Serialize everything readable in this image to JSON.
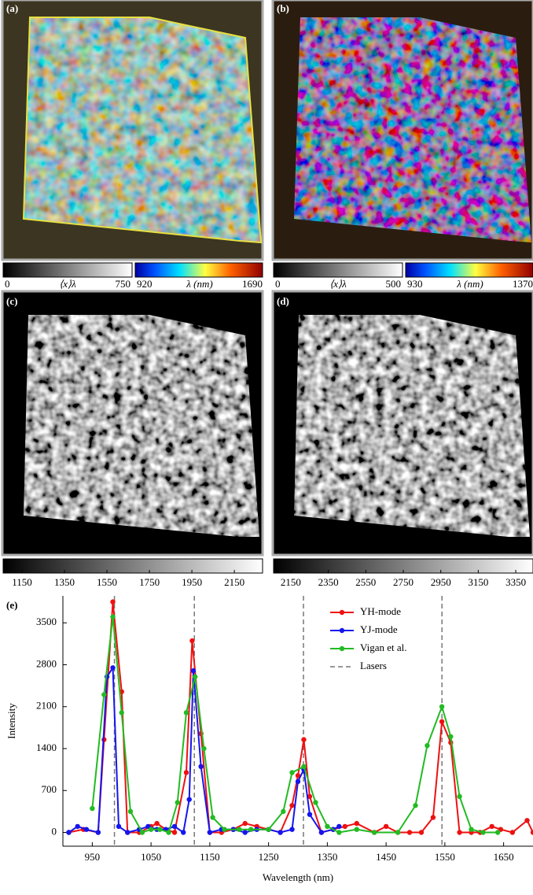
{
  "panels": [
    {
      "label": "(a)",
      "colorbars": [
        {
          "left": "0",
          "center": "⟨x⟩λ",
          "right": "750"
        },
        {
          "left": "920",
          "center": "λ (nm)",
          "right": "1690"
        }
      ]
    },
    {
      "label": "(b)",
      "colorbars": [
        {
          "left": "0",
          "center": "⟨x⟩λ",
          "right": "500"
        },
        {
          "left": "930",
          "center": "λ (nm)",
          "right": "1370"
        }
      ]
    },
    {
      "label": "(c)",
      "colorbar": {
        "clim": [
          1061,
          2283
        ],
        "ticks": [
          1150,
          1350,
          1550,
          1750,
          1950,
          2150
        ]
      }
    },
    {
      "label": "(d)",
      "colorbar": {
        "clim": [
          2058,
          3442
        ],
        "ticks": [
          2150,
          2350,
          2550,
          2750,
          2950,
          3150,
          3350
        ]
      }
    }
  ],
  "chart_data": {
    "type": "line",
    "panel_label": "(e)",
    "x_label": "Wavelength (nm)",
    "y_label": "Intensity",
    "xlim": [
      900,
      1700
    ],
    "ylim": [
      -230,
      3950
    ],
    "xticks": [
      950,
      1050,
      1150,
      1250,
      1350,
      1450,
      1550,
      1650
    ],
    "yticks": [
      0,
      700,
      1400,
      2100,
      2800,
      3500
    ],
    "legend_position": "upper right",
    "series": [
      {
        "name": "YH-mode",
        "color": "#ee1111",
        "x": [
          910,
          935,
          960,
          970,
          985,
          1000,
          1010,
          1030,
          1050,
          1060,
          1075,
          1090,
          1110,
          1120,
          1135,
          1150,
          1170,
          1190,
          1210,
          1230,
          1250,
          1270,
          1290,
          1300,
          1310,
          1320,
          1340,
          1360,
          1380,
          1400,
          1430,
          1450,
          1470,
          1490,
          1510,
          1530,
          1545,
          1560,
          1575,
          1595,
          1610,
          1630,
          1645,
          1665,
          1690,
          1700
        ],
        "values": [
          0,
          50,
          0,
          1550,
          3850,
          2350,
          0,
          0,
          100,
          150,
          50,
          0,
          1000,
          3200,
          1650,
          0,
          0,
          50,
          150,
          100,
          50,
          0,
          450,
          950,
          1550,
          600,
          0,
          50,
          100,
          150,
          0,
          100,
          0,
          0,
          0,
          250,
          1850,
          1500,
          0,
          0,
          0,
          100,
          50,
          0,
          200,
          0
        ]
      },
      {
        "name": "YJ-mode",
        "color": "#1515ee",
        "x": [
          910,
          925,
          940,
          960,
          975,
          985,
          995,
          1010,
          1030,
          1045,
          1060,
          1075,
          1090,
          1105,
          1115,
          1122,
          1135,
          1150,
          1170,
          1190,
          1210,
          1230,
          1250,
          1270,
          1290,
          1300,
          1310,
          1320,
          1340,
          1360,
          1370
        ],
        "values": [
          0,
          100,
          50,
          0,
          2600,
          2750,
          100,
          0,
          50,
          100,
          50,
          50,
          100,
          0,
          550,
          2700,
          1100,
          0,
          50,
          50,
          0,
          50,
          50,
          0,
          50,
          850,
          1050,
          300,
          0,
          50,
          100
        ]
      },
      {
        "name": "Vigan et al.",
        "color": "#22bb22",
        "x": [
          950,
          970,
          985,
          1000,
          1015,
          1035,
          1050,
          1065,
          1080,
          1095,
          1110,
          1125,
          1140,
          1155,
          1175,
          1200,
          1220,
          1250,
          1275,
          1290,
          1310,
          1330,
          1350,
          1370,
          1400,
          1430,
          1470,
          1500,
          1520,
          1545,
          1560,
          1575,
          1595,
          1615,
          1640
        ],
        "values": [
          400,
          2300,
          3600,
          2000,
          350,
          0,
          50,
          50,
          0,
          500,
          2000,
          2600,
          1400,
          250,
          50,
          50,
          50,
          50,
          350,
          1000,
          1100,
          500,
          100,
          0,
          50,
          0,
          0,
          450,
          1450,
          2100,
          1600,
          600,
          50,
          0,
          0
        ]
      }
    ],
    "lasers": {
      "name": "Lasers",
      "color": "#777777",
      "x": [
        987.72,
        1123.71,
        1309.37,
        1545.07
      ]
    }
  }
}
